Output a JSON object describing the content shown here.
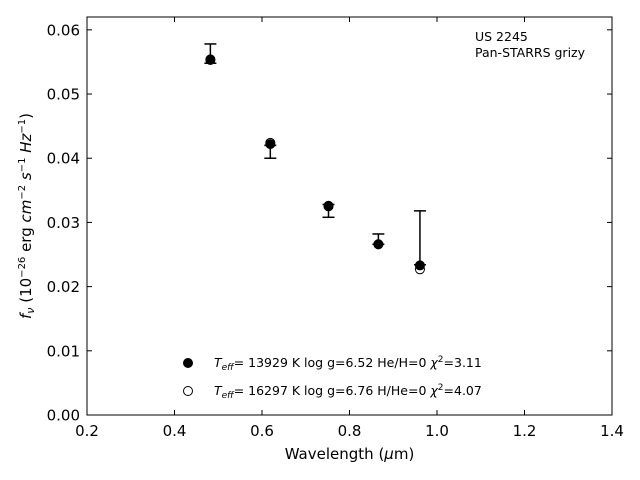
{
  "chart_data": {
    "type": "scatter",
    "xlabel": {
      "prefix": "Wavelength (",
      "mu": "μ",
      "suffix": "m)"
    },
    "ylabel": {
      "f": "f",
      "nu": "ν",
      "unit_open": " (10",
      "exp1": "−26",
      "erg": " erg ",
      "cm": "cm",
      "exp2": "−2",
      "s": " s",
      "exp3": "−1",
      "hz": " Hz",
      "exp4": "−1",
      "close": ")"
    },
    "xlim": [
      0.2,
      1.4
    ],
    "ylim": [
      0.0,
      0.062
    ],
    "xticks": [
      "0.2",
      "0.4",
      "0.6",
      "0.8",
      "1.0",
      "1.2",
      "1.4"
    ],
    "yticks": [
      "0.00",
      "0.01",
      "0.02",
      "0.03",
      "0.04",
      "0.05",
      "0.06"
    ],
    "annotation_lines": [
      "US 2245",
      "Pan-STARRS grizy"
    ],
    "annotation_placement": "top-right",
    "observed": [
      {
        "x": 0.482,
        "y": 0.0555,
        "y_lo": 0.0548,
        "y_hi": 0.0578
      },
      {
        "x": 0.619,
        "y": 0.0418,
        "y_lo": 0.04,
        "y_hi": 0.042
      },
      {
        "x": 0.752,
        "y": 0.0325,
        "y_lo": 0.0308,
        "y_hi": 0.0328
      },
      {
        "x": 0.866,
        "y": 0.0266,
        "y_lo": 0.0266,
        "y_hi": 0.0282
      },
      {
        "x": 0.961,
        "y": 0.0234,
        "y_lo": 0.0234,
        "y_hi": 0.0318
      }
    ],
    "series": [
      {
        "marker": "filled-circle",
        "x": [
          0.482,
          0.619,
          0.752,
          0.866,
          0.961
        ],
        "y": [
          0.0553,
          0.0422,
          0.0326,
          0.0266,
          0.0233
        ],
        "legend": {
          "t": "T",
          "eff": "eff",
          "rest": "= 13929 K  log g=6.52  He/H=0  ",
          "chi": "χ",
          "sq": "2",
          "chival": "=3.11"
        }
      },
      {
        "marker": "open-circle",
        "x": [
          0.482,
          0.619,
          0.752,
          0.866,
          0.961
        ],
        "y": [
          0.0554,
          0.0424,
          0.0325,
          0.0266,
          0.0227
        ],
        "legend": {
          "t": "T",
          "eff": "eff",
          "rest": "= 16297 K  log g=6.76  H/He=0  ",
          "chi": "χ",
          "sq": "2",
          "chival": "=4.07"
        }
      }
    ],
    "legend_placement": "bottom-center",
    "grid": false
  }
}
